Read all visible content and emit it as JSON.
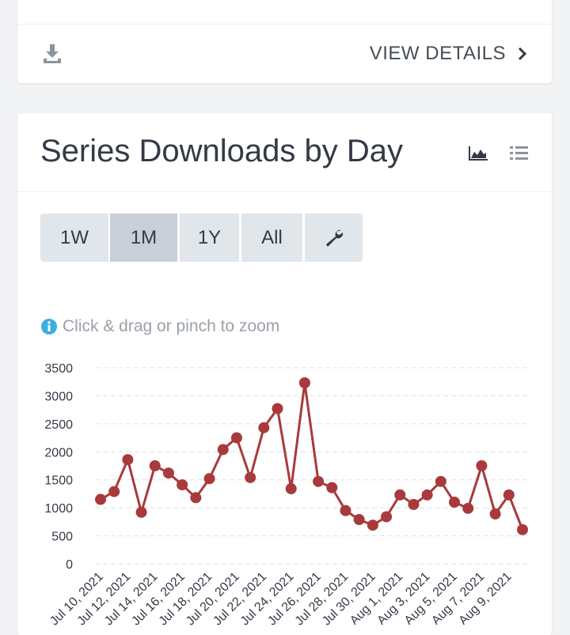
{
  "top_card": {
    "action": "VIEW DETAILS"
  },
  "title": "Series Downloads by Day",
  "buttons": [
    "1W",
    "1M",
    "1Y",
    "All"
  ],
  "selected_button": "1M",
  "hint": "Click & drag or pinch to zoom",
  "chart_data": {
    "type": "line",
    "categories": [
      "Jul 10, 2021",
      null,
      "Jul 12, 2021",
      null,
      "Jul 14, 2021",
      null,
      "Jul 16, 2021",
      null,
      "Jul 18, 2021",
      null,
      "Jul 20, 2021",
      null,
      "Jul 22, 2021",
      null,
      "Jul 24, 2021",
      null,
      "Jul 26, 2021",
      null,
      "Jul 28, 2021",
      null,
      "Jul 30, 2021",
      null,
      "Aug 1, 2021",
      null,
      "Aug 3, 2021",
      null,
      "Aug 5, 2021",
      null,
      "Aug 7, 2021",
      null,
      "Aug 9, 2021",
      null
    ],
    "values": [
      1150,
      1290,
      1860,
      920,
      1750,
      1620,
      1410,
      1180,
      1520,
      2040,
      2250,
      1540,
      2430,
      2770,
      1340,
      3230,
      1470,
      1360,
      950,
      790,
      690,
      840,
      1230,
      1060,
      1230,
      1470,
      1100,
      990,
      1750,
      890,
      1230,
      610
    ],
    "color": "#a83a3c",
    "ylim": [
      0,
      3500
    ],
    "yticks": [
      0,
      500,
      1000,
      1500,
      2000,
      2500,
      3000,
      3500
    ],
    "grid": true
  }
}
